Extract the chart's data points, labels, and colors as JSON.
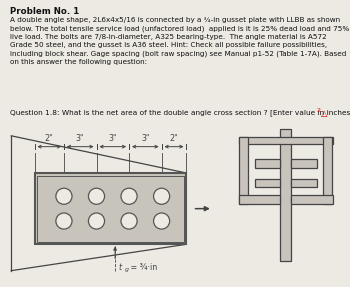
{
  "title": "Problem No. 1",
  "body_text": "A double angle shape, 2L6x4x5/16 is connected by a ¾-in gusset plate with LLBB as shown\nbelow. The total tensile service load (unfactored load)  applied is it is 25% dead load and 75%\nlive load. The bolts are 7/8-in-diameter, A325 bearing-type.  The angle material is A572\nGrade 50 steel, and the gusset is A36 steel. Hint: Check all possible failure possibilities,\nincluding block shear. Gage spacing (bolt raw spacing) see Manual p1-52 (Table 1-7A). Based\non this answer the following question:",
  "question_text": "Question 1.8: What is the net area of the double angle cross section ? [Enter value in inches",
  "question_super": "2",
  "dim_labels": [
    "2\"",
    "3\"",
    "3\"",
    "3\"",
    "2\""
  ],
  "label_tg": "t",
  "label_tg2": "g",
  "label_tg3": " = ¾·in",
  "bg_color": "#edeae3",
  "plate_color": "#c8c4bc",
  "plate_edge": "#555555",
  "line_color": "#444444",
  "bolt_face": "#edeae3",
  "bolt_edge": "#555555",
  "text_color": "#111111",
  "arrow_color": "#333333"
}
